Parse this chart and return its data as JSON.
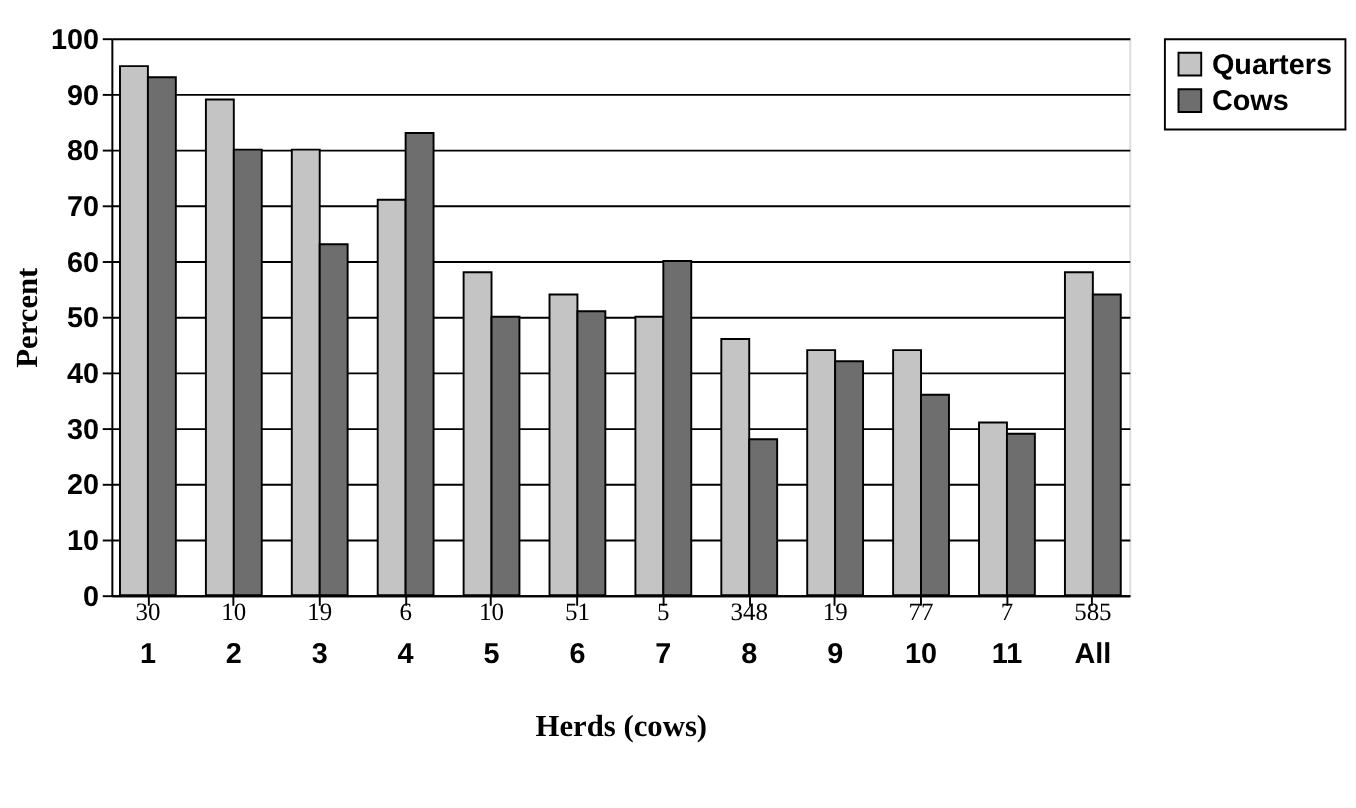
{
  "chart_data": {
    "type": "bar",
    "xlabel": "Herds (cows)",
    "ylabel": "Percent",
    "categories": [
      "1",
      "2",
      "3",
      "4",
      "5",
      "6",
      "7",
      "8",
      "9",
      "10",
      "11",
      "All"
    ],
    "series": [
      {
        "name": "Quarters",
        "color": "#c4c4c4",
        "values": [
          95,
          89,
          80,
          71,
          58,
          54,
          50,
          46,
          44,
          44,
          31,
          58
        ]
      },
      {
        "name": "Cows",
        "color": "#6e6e6e",
        "values": [
          93,
          80,
          63,
          83,
          50,
          51,
          60,
          28,
          42,
          36,
          29,
          54
        ]
      }
    ],
    "ylim": [
      0,
      100
    ],
    "yticks": [
      0,
      10,
      20,
      30,
      40,
      50,
      60,
      70,
      80,
      90,
      100
    ],
    "grid": "y",
    "legend": "right",
    "annotations": [
      "30",
      "10",
      "19",
      "6",
      "10",
      "51",
      "5",
      "348",
      "19",
      "77",
      "7",
      "585"
    ]
  }
}
